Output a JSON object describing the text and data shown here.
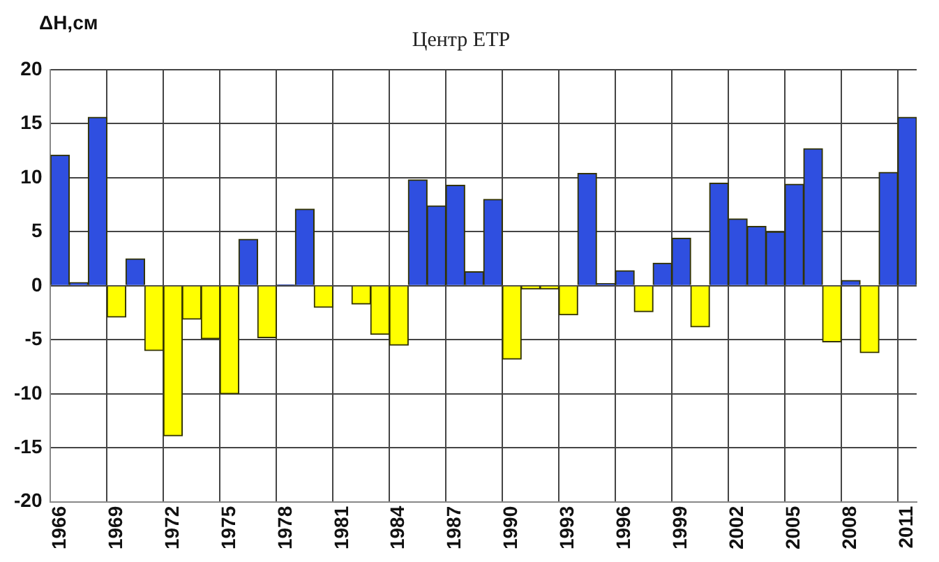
{
  "chart_data": {
    "type": "bar",
    "title": "Центр ЕТР",
    "ylabel": "ΔН,см",
    "categories": [
      "1966",
      null,
      null,
      "1969",
      null,
      null,
      "1972",
      null,
      null,
      "1975",
      null,
      null,
      "1978",
      null,
      null,
      "1981",
      null,
      null,
      "1984",
      null,
      null,
      "1987",
      null,
      null,
      "1990",
      null,
      null,
      "1993",
      null,
      null,
      "1996",
      null,
      null,
      "1999",
      null,
      null,
      "2002",
      null,
      null,
      "2005",
      null,
      null,
      "2008",
      null,
      null,
      "2011"
    ],
    "values": [
      12.1,
      0.3,
      15.6,
      -2.9,
      2.5,
      -6.0,
      -13.9,
      -3.1,
      -4.9,
      -10.0,
      4.3,
      -4.8,
      0.1,
      7.1,
      -2.0,
      0,
      -1.7,
      -4.5,
      -5.5,
      9.8,
      7.4,
      9.3,
      1.3,
      8.0,
      -6.8,
      -0.3,
      -0.3,
      -2.7,
      10.4,
      0.2,
      1.4,
      -2.4,
      2.1,
      4.4,
      -3.8,
      9.5,
      6.2,
      5.5,
      5.0,
      9.4,
      12.7,
      -5.2,
      0.5,
      -6.2,
      10.5,
      15.6
    ],
    "colors": [
      "#2f4fe0",
      "#2f4fe0",
      "#2f4fe0",
      "#ffff00",
      "#2f4fe0",
      "#ffff00",
      "#ffff00",
      "#ffff00",
      "#ffff00",
      "#ffff00",
      "#2f4fe0",
      "#ffff00",
      "#2f4fe0",
      "#2f4fe0",
      "#ffff00",
      "#2f4fe0",
      "#ffff00",
      "#ffff00",
      "#ffff00",
      "#2f4fe0",
      "#2f4fe0",
      "#2f4fe0",
      "#2f4fe0",
      "#2f4fe0",
      "#ffff00",
      "#ffff00",
      "#ffff00",
      "#ffff00",
      "#2f4fe0",
      "#2f4fe0",
      "#2f4fe0",
      "#ffff00",
      "#2f4fe0",
      "#2f4fe0",
      "#ffff00",
      "#2f4fe0",
      "#2f4fe0",
      "#2f4fe0",
      "#2f4fe0",
      "#2f4fe0",
      "#2f4fe0",
      "#ffff00",
      "#2f4fe0",
      "#ffff00",
      "#2f4fe0",
      "#2f4fe0"
    ],
    "ylim": [
      -20,
      20
    ],
    "yticks": [
      -20,
      -15,
      -10,
      -5,
      0,
      5,
      10,
      15,
      20
    ],
    "grid": true,
    "legend": false
  }
}
